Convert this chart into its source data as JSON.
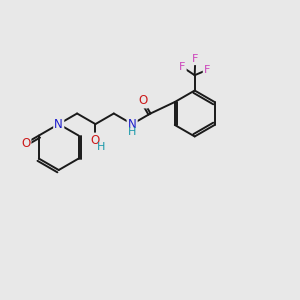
{
  "background_color": "#e8e8e8",
  "bond_color": "#1a1a1a",
  "bond_width": 1.4,
  "atom_colors": {
    "N": "#1a1acc",
    "O": "#cc1a1a",
    "F": "#cc44bb",
    "NH": "#1a99aa"
  },
  "font_size_atom": 8.5
}
